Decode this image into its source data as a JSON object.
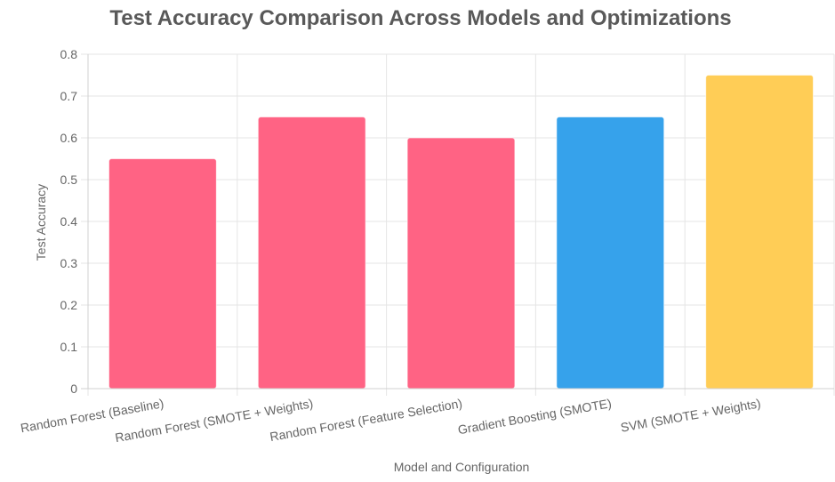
{
  "chart_data": {
    "type": "bar",
    "title": "Test Accuracy Comparison Across Models and Optimizations",
    "xlabel": "Model and Configuration",
    "ylabel": "Test Accuracy",
    "categories": [
      "Random Forest (Baseline)",
      "Random Forest (SMOTE + Weights)",
      "Random Forest (Feature Selection)",
      "Gradient Boosting (SMOTE)",
      "SVM (SMOTE + Weights)"
    ],
    "values": [
      0.55,
      0.65,
      0.6,
      0.65,
      0.75
    ],
    "bar_colors": [
      "#ff6384",
      "#ff6384",
      "#ff6384",
      "#36a2eb",
      "#ffcd56"
    ],
    "ylim": [
      0,
      0.8
    ],
    "yticks": [
      "0",
      "0.1",
      "0.2",
      "0.3",
      "0.4",
      "0.5",
      "0.6",
      "0.7",
      "0.8"
    ],
    "grid": true,
    "legend": "none"
  }
}
